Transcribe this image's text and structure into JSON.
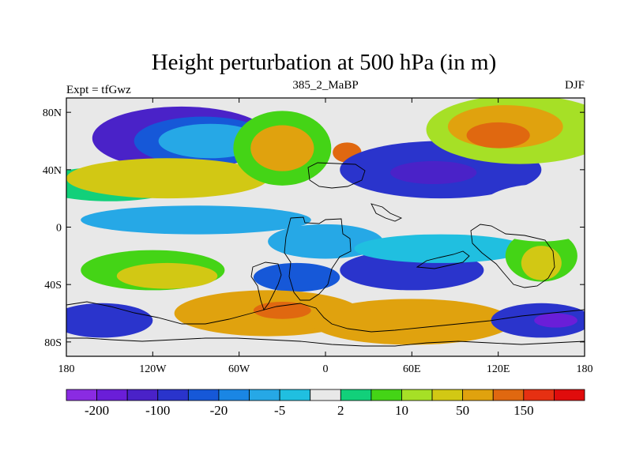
{
  "chart_data": {
    "type": "heatmap",
    "title": "Height perturbation at 500 hPa (in m)",
    "subtitle_left": "Expt = tfGwz",
    "subtitle_center": "385_2_MaBP",
    "subtitle_right": "DJF",
    "x_ticks": [
      "180",
      "120W",
      "60W",
      "0",
      "60E",
      "120E",
      "180"
    ],
    "x_tick_values": [
      -180,
      -120,
      -60,
      0,
      60,
      120,
      180
    ],
    "y_ticks": [
      "80N",
      "40N",
      "0",
      "40S",
      "80S"
    ],
    "y_tick_values": [
      80,
      40,
      0,
      -40,
      -80
    ],
    "xlim": [
      -180,
      180
    ],
    "ylim": [
      -90,
      90
    ],
    "grid": false,
    "legend_position": "bottom",
    "colorbar": {
      "colors": [
        "#8a2be2",
        "#6a1ed8",
        "#4a22c8",
        "#2a34cc",
        "#1658d8",
        "#1a86e4",
        "#26a8e6",
        "#20bfe0",
        "#e8e8e8",
        "#12d07a",
        "#44d416",
        "#a6e026",
        "#d2c814",
        "#e0a20e",
        "#e06810",
        "#e63012",
        "#e00c0c"
      ],
      "labels": [
        "-200",
        "-100",
        "-20",
        "-5",
        "2",
        "10",
        "50",
        "150"
      ],
      "label_boundaries": [
        1,
        3,
        5,
        7,
        9,
        11,
        13,
        15
      ]
    },
    "regions": [
      {
        "level": 2,
        "lon": -100,
        "lat": 62,
        "rx": 62,
        "ry": 22
      },
      {
        "level": 4,
        "lon": -85,
        "lat": 60,
        "rx": 48,
        "ry": 17
      },
      {
        "level": 6,
        "lon": -80,
        "lat": 60,
        "rx": 36,
        "ry": 12
      },
      {
        "level": 9,
        "lon": -150,
        "lat": 30,
        "rx": 50,
        "ry": 12
      },
      {
        "level": 12,
        "lon": -110,
        "lat": 34,
        "rx": 70,
        "ry": 14
      },
      {
        "level": 10,
        "lon": -30,
        "lat": 55,
        "rx": 34,
        "ry": 26
      },
      {
        "level": 13,
        "lon": -30,
        "lat": 55,
        "rx": 22,
        "ry": 16
      },
      {
        "level": 14,
        "lon": 15,
        "lat": 52,
        "rx": 10,
        "ry": 7
      },
      {
        "level": 3,
        "lon": 80,
        "lat": 40,
        "rx": 70,
        "ry": 20
      },
      {
        "level": 2,
        "lon": 75,
        "lat": 38,
        "rx": 30,
        "ry": 8
      },
      {
        "level": 11,
        "lon": 135,
        "lat": 68,
        "rx": 65,
        "ry": 24
      },
      {
        "level": 13,
        "lon": 125,
        "lat": 70,
        "rx": 40,
        "ry": 15
      },
      {
        "level": 14,
        "lon": 120,
        "lat": 64,
        "rx": 22,
        "ry": 9
      },
      {
        "level": 6,
        "lon": -90,
        "lat": 5,
        "rx": 80,
        "ry": 10
      },
      {
        "level": 6,
        "lon": 0,
        "lat": -10,
        "rx": 40,
        "ry": 12
      },
      {
        "level": 10,
        "lon": -120,
        "lat": -30,
        "rx": 50,
        "ry": 14
      },
      {
        "level": 12,
        "lon": -110,
        "lat": -34,
        "rx": 35,
        "ry": 9
      },
      {
        "level": 4,
        "lon": -20,
        "lat": -35,
        "rx": 30,
        "ry": 10
      },
      {
        "level": 3,
        "lon": 60,
        "lat": -30,
        "rx": 50,
        "ry": 14
      },
      {
        "level": 7,
        "lon": 80,
        "lat": -15,
        "rx": 60,
        "ry": 10
      },
      {
        "level": 10,
        "lon": 150,
        "lat": -20,
        "rx": 25,
        "ry": 18
      },
      {
        "level": 12,
        "lon": 150,
        "lat": -25,
        "rx": 14,
        "ry": 12
      },
      {
        "level": 13,
        "lon": -40,
        "lat": -60,
        "rx": 65,
        "ry": 16
      },
      {
        "level": 14,
        "lon": -30,
        "lat": -58,
        "rx": 20,
        "ry": 6
      },
      {
        "level": 13,
        "lon": 60,
        "lat": -66,
        "rx": 70,
        "ry": 16
      },
      {
        "level": 3,
        "lon": -155,
        "lat": -65,
        "rx": 35,
        "ry": 12
      },
      {
        "level": 3,
        "lon": 150,
        "lat": -65,
        "rx": 35,
        "ry": 12
      },
      {
        "level": 1,
        "lon": 160,
        "lat": -65,
        "rx": 15,
        "ry": 5
      },
      {
        "level": 8,
        "lon": 150,
        "lat": 10,
        "rx": 45,
        "ry": 20
      }
    ]
  }
}
